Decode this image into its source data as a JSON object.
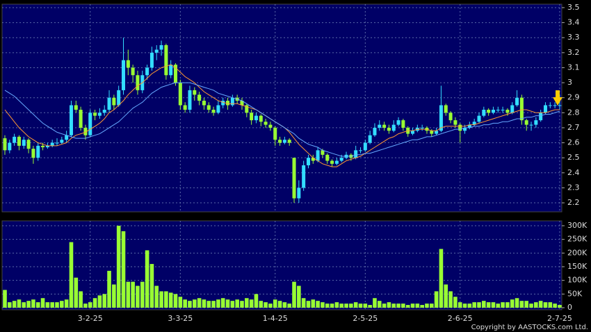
{
  "chart_data": [
    {
      "type": "candlestick",
      "up_color": "#33ddff",
      "down_color": "#99ff33",
      "ylim": [
        2.14,
        3.523
      ],
      "yticks": [
        2.2,
        2.3,
        2.4,
        2.5,
        2.6,
        2.7,
        2.8,
        2.9,
        3,
        3.1,
        3.2,
        3.3,
        3.4,
        3.5
      ],
      "grid": true,
      "categories": [
        null,
        null,
        null,
        null,
        null,
        null,
        null,
        null,
        null,
        null,
        null,
        null,
        null,
        null,
        null,
        null,
        null,
        null,
        "3-2-25",
        null,
        null,
        null,
        null,
        null,
        null,
        null,
        null,
        null,
        null,
        null,
        null,
        null,
        null,
        null,
        null,
        null,
        null,
        "3-3-25",
        null,
        null,
        null,
        null,
        null,
        null,
        null,
        null,
        null,
        null,
        null,
        null,
        null,
        null,
        null,
        null,
        null,
        null,
        null,
        "1-4-25",
        null,
        null,
        null,
        null,
        null,
        null,
        null,
        null,
        null,
        null,
        null,
        null,
        null,
        null,
        null,
        null,
        null,
        null,
        "2-5-25",
        null,
        null,
        null,
        null,
        null,
        null,
        null,
        null,
        null,
        null,
        null,
        null,
        null,
        null,
        null,
        null,
        null,
        null,
        null,
        "2-6-25",
        null,
        null,
        null,
        null,
        null,
        null,
        null,
        null,
        null,
        null,
        null,
        null,
        null,
        null,
        null,
        null,
        null,
        null,
        null,
        null,
        "2-7-25"
      ],
      "ohlc": [
        [
          2.63,
          2.65,
          2.52,
          2.55
        ],
        [
          2.55,
          2.62,
          2.53,
          2.6
        ],
        [
          2.6,
          2.66,
          2.58,
          2.64
        ],
        [
          2.64,
          2.65,
          2.55,
          2.58
        ],
        [
          2.58,
          2.64,
          2.56,
          2.62
        ],
        [
          2.62,
          2.63,
          2.53,
          2.56
        ],
        [
          2.56,
          2.58,
          2.46,
          2.5
        ],
        [
          2.5,
          2.6,
          2.48,
          2.58
        ],
        [
          2.58,
          2.6,
          2.55,
          2.57
        ],
        [
          2.57,
          2.6,
          2.56,
          2.58
        ],
        [
          2.58,
          2.62,
          2.57,
          2.6
        ],
        [
          2.6,
          2.63,
          2.58,
          2.6
        ],
        [
          2.6,
          2.64,
          2.59,
          2.62
        ],
        [
          2.62,
          2.68,
          2.6,
          2.65
        ],
        [
          2.65,
          2.88,
          2.64,
          2.85
        ],
        [
          2.85,
          2.88,
          2.8,
          2.82
        ],
        [
          2.82,
          2.84,
          2.68,
          2.7
        ],
        [
          2.7,
          2.72,
          2.62,
          2.65
        ],
        [
          2.65,
          2.82,
          2.64,
          2.8
        ],
        [
          2.8,
          2.82,
          2.75,
          2.78
        ],
        [
          2.78,
          2.83,
          2.76,
          2.8
        ],
        [
          2.8,
          2.85,
          2.78,
          2.82
        ],
        [
          2.82,
          2.95,
          2.8,
          2.9
        ],
        [
          2.9,
          2.92,
          2.82,
          2.85
        ],
        [
          2.85,
          2.98,
          2.84,
          2.95
        ],
        [
          2.95,
          3.3,
          2.92,
          3.15
        ],
        [
          3.15,
          3.22,
          3.05,
          3.1
        ],
        [
          3.1,
          3.12,
          3.0,
          3.05
        ],
        [
          3.05,
          3.08,
          2.92,
          2.95
        ],
        [
          2.95,
          3.08,
          2.93,
          3.05
        ],
        [
          3.05,
          3.12,
          3.02,
          3.1
        ],
        [
          3.1,
          3.24,
          3.08,
          3.2
        ],
        [
          3.2,
          3.25,
          3.15,
          3.22
        ],
        [
          3.22,
          3.28,
          3.18,
          3.25
        ],
        [
          3.25,
          3.26,
          3.02,
          3.05
        ],
        [
          3.05,
          3.15,
          3.03,
          3.12
        ],
        [
          3.12,
          3.13,
          2.98,
          3.0
        ],
        [
          3.0,
          3.02,
          2.82,
          2.85
        ],
        [
          2.85,
          2.87,
          2.8,
          2.82
        ],
        [
          2.82,
          2.98,
          2.8,
          2.95
        ],
        [
          2.95,
          2.97,
          2.88,
          2.92
        ],
        [
          2.92,
          2.94,
          2.85,
          2.88
        ],
        [
          2.88,
          2.9,
          2.82,
          2.85
        ],
        [
          2.85,
          2.87,
          2.8,
          2.82
        ],
        [
          2.82,
          2.84,
          2.78,
          2.8
        ],
        [
          2.8,
          2.88,
          2.79,
          2.85
        ],
        [
          2.85,
          2.9,
          2.83,
          2.88
        ],
        [
          2.88,
          2.9,
          2.82,
          2.85
        ],
        [
          2.85,
          2.92,
          2.84,
          2.9
        ],
        [
          2.9,
          2.92,
          2.86,
          2.88
        ],
        [
          2.88,
          2.9,
          2.82,
          2.85
        ],
        [
          2.85,
          2.86,
          2.77,
          2.8
        ],
        [
          2.8,
          2.82,
          2.72,
          2.75
        ],
        [
          2.75,
          2.8,
          2.73,
          2.78
        ],
        [
          2.78,
          2.79,
          2.71,
          2.74
        ],
        [
          2.74,
          2.76,
          2.7,
          2.72
        ],
        [
          2.72,
          2.74,
          2.68,
          2.7
        ],
        [
          2.7,
          2.71,
          2.58,
          2.62
        ],
        [
          2.62,
          2.64,
          2.58,
          2.6
        ],
        [
          2.6,
          2.64,
          2.59,
          2.62
        ],
        [
          2.62,
          2.63,
          2.58,
          2.6
        ],
        [
          2.5,
          2.5,
          2.2,
          2.23
        ],
        [
          2.23,
          2.35,
          2.2,
          2.3
        ],
        [
          2.3,
          2.48,
          2.28,
          2.45
        ],
        [
          2.45,
          2.52,
          2.43,
          2.5
        ],
        [
          2.5,
          2.52,
          2.46,
          2.48
        ],
        [
          2.48,
          2.57,
          2.47,
          2.55
        ],
        [
          2.55,
          2.56,
          2.5,
          2.52
        ],
        [
          2.52,
          2.53,
          2.46,
          2.48
        ],
        [
          2.48,
          2.49,
          2.44,
          2.46
        ],
        [
          2.46,
          2.5,
          2.45,
          2.48
        ],
        [
          2.48,
          2.52,
          2.47,
          2.5
        ],
        [
          2.5,
          2.54,
          2.49,
          2.52
        ],
        [
          2.52,
          2.53,
          2.48,
          2.5
        ],
        [
          2.5,
          2.58,
          2.49,
          2.55
        ],
        [
          2.55,
          2.57,
          2.53,
          2.55
        ],
        [
          2.55,
          2.62,
          2.54,
          2.6
        ],
        [
          2.6,
          2.68,
          2.59,
          2.65
        ],
        [
          2.65,
          2.73,
          2.64,
          2.7
        ],
        [
          2.7,
          2.75,
          2.68,
          2.72
        ],
        [
          2.72,
          2.74,
          2.68,
          2.7
        ],
        [
          2.7,
          2.72,
          2.66,
          2.68
        ],
        [
          2.68,
          2.75,
          2.67,
          2.72
        ],
        [
          2.72,
          2.77,
          2.71,
          2.75
        ],
        [
          2.75,
          2.76,
          2.68,
          2.7
        ],
        [
          2.7,
          2.71,
          2.64,
          2.66
        ],
        [
          2.66,
          2.7,
          2.65,
          2.68
        ],
        [
          2.68,
          2.72,
          2.67,
          2.7
        ],
        [
          2.7,
          2.72,
          2.68,
          2.7
        ],
        [
          2.7,
          2.71,
          2.66,
          2.68
        ],
        [
          2.68,
          2.69,
          2.64,
          2.66
        ],
        [
          2.66,
          2.7,
          2.65,
          2.68
        ],
        [
          2.68,
          2.98,
          2.67,
          2.85
        ],
        [
          2.85,
          2.86,
          2.78,
          2.8
        ],
        [
          2.8,
          2.81,
          2.73,
          2.75
        ],
        [
          2.75,
          2.77,
          2.7,
          2.72
        ],
        [
          2.72,
          2.73,
          2.6,
          2.68
        ],
        [
          2.68,
          2.72,
          2.66,
          2.7
        ],
        [
          2.7,
          2.74,
          2.69,
          2.72
        ],
        [
          2.72,
          2.76,
          2.71,
          2.74
        ],
        [
          2.74,
          2.8,
          2.73,
          2.78
        ],
        [
          2.78,
          2.84,
          2.77,
          2.82
        ],
        [
          2.82,
          2.83,
          2.78,
          2.8
        ],
        [
          2.8,
          2.84,
          2.79,
          2.82
        ],
        [
          2.82,
          2.84,
          2.8,
          2.82
        ],
        [
          2.82,
          2.84,
          2.8,
          2.82
        ],
        [
          2.82,
          2.83,
          2.78,
          2.8
        ],
        [
          2.8,
          2.87,
          2.79,
          2.85
        ],
        [
          2.85,
          2.95,
          2.84,
          2.9
        ],
        [
          2.9,
          2.92,
          2.72,
          2.75
        ],
        [
          2.75,
          2.76,
          2.68,
          2.72
        ],
        [
          2.72,
          2.74,
          2.68,
          2.72
        ],
        [
          2.72,
          2.77,
          2.7,
          2.75
        ],
        [
          2.75,
          2.82,
          2.74,
          2.8
        ],
        [
          2.8,
          2.87,
          2.79,
          2.85
        ],
        [
          2.85,
          2.87,
          2.83,
          2.85
        ],
        [
          2.85,
          2.87,
          2.83,
          2.85
        ],
        [
          2.85,
          2.92,
          2.82,
          2.85
        ]
      ],
      "ma": [
        {
          "color": "#ff9933",
          "values": [
            2.82,
            2.78,
            2.74,
            2.7,
            2.67,
            2.64,
            2.62,
            2.6,
            2.59,
            2.58,
            2.58,
            2.58,
            2.59,
            2.6,
            2.63,
            2.65,
            2.66,
            2.67,
            2.69,
            2.71,
            2.73,
            2.76,
            2.8,
            2.82,
            2.85,
            2.88,
            2.92,
            2.95,
            2.98,
            3.0,
            3.03,
            3.06,
            3.08,
            3.1,
            3.11,
            3.12,
            3.1,
            3.07,
            3.04,
            3.02,
            3.0,
            2.97,
            2.94,
            2.92,
            2.9,
            2.88,
            2.87,
            2.86,
            2.86,
            2.86,
            2.85,
            2.84,
            2.83,
            2.82,
            2.8,
            2.78,
            2.76,
            2.74,
            2.72,
            2.7,
            2.67,
            2.63,
            2.59,
            2.56,
            2.53,
            2.5,
            2.48,
            2.46,
            2.45,
            2.44,
            2.44,
            2.46,
            2.48,
            2.49,
            2.5,
            2.51,
            2.53,
            2.55,
            2.57,
            2.59,
            2.61,
            2.63,
            2.64,
            2.66,
            2.67,
            2.68,
            2.68,
            2.69,
            2.69,
            2.69,
            2.68,
            2.68,
            2.7,
            2.71,
            2.71,
            2.71,
            2.71,
            2.71,
            2.72,
            2.72,
            2.73,
            2.74,
            2.75,
            2.76,
            2.77,
            2.78,
            2.79,
            2.8,
            2.81,
            2.82,
            2.82,
            2.81,
            2.8,
            2.8,
            2.8,
            2.81,
            2.82,
            2.82
          ]
        },
        {
          "color": "#66aaff",
          "values": [
            2.95,
            2.93,
            2.91,
            2.88,
            2.85,
            2.82,
            2.79,
            2.76,
            2.73,
            2.71,
            2.69,
            2.67,
            2.66,
            2.65,
            2.64,
            2.63,
            2.63,
            2.63,
            2.64,
            2.65,
            2.66,
            2.68,
            2.7,
            2.72,
            2.74,
            2.77,
            2.8,
            2.83,
            2.85,
            2.87,
            2.9,
            2.93,
            2.95,
            2.97,
            2.98,
            2.99,
            3.0,
            3.0,
            3.0,
            3.0,
            2.99,
            2.98,
            2.97,
            2.96,
            2.95,
            2.93,
            2.92,
            2.91,
            2.9,
            2.89,
            2.88,
            2.86,
            2.84,
            2.82,
            2.8,
            2.78,
            2.76,
            2.74,
            2.72,
            2.7,
            2.68,
            2.66,
            2.63,
            2.61,
            2.59,
            2.58,
            2.57,
            2.55,
            2.54,
            2.53,
            2.52,
            2.51,
            2.51,
            2.51,
            2.52,
            2.52,
            2.53,
            2.53,
            2.54,
            2.55,
            2.56,
            2.57,
            2.58,
            2.59,
            2.6,
            2.61,
            2.62,
            2.62,
            2.63,
            2.64,
            2.64,
            2.65,
            2.66,
            2.67,
            2.68,
            2.69,
            2.69,
            2.7,
            2.7,
            2.71,
            2.71,
            2.72,
            2.72,
            2.73,
            2.73,
            2.74,
            2.74,
            2.75,
            2.76,
            2.76,
            2.77,
            2.77,
            2.78,
            2.78,
            2.79,
            2.79,
            2.8,
            2.81
          ]
        }
      ]
    },
    {
      "type": "bar",
      "color": "#99ff33",
      "ylim": [
        -7600,
        317800
      ],
      "yticks": [
        0,
        {
          "value": 50000,
          "label": "50K"
        },
        {
          "value": 100000,
          "label": "100K"
        },
        {
          "value": 150000,
          "label": "150K"
        },
        {
          "value": 200000,
          "label": "200K"
        },
        {
          "value": 250000,
          "label": "250K"
        },
        {
          "value": 300000,
          "label": "300K"
        }
      ],
      "grid": true,
      "values": [
        65000,
        20000,
        25000,
        30000,
        20000,
        25000,
        30000,
        20000,
        35000,
        20000,
        20000,
        20000,
        25000,
        30000,
        240000,
        110000,
        60000,
        15000,
        20000,
        35000,
        45000,
        50000,
        135000,
        85000,
        300000,
        280000,
        95000,
        95000,
        80000,
        95000,
        210000,
        160000,
        80000,
        60000,
        60000,
        55000,
        50000,
        40000,
        30000,
        25000,
        30000,
        35000,
        30000,
        25000,
        25000,
        30000,
        35000,
        30000,
        25000,
        30000,
        25000,
        35000,
        30000,
        50000,
        25000,
        20000,
        15000,
        30000,
        25000,
        20000,
        15000,
        95000,
        80000,
        35000,
        25000,
        30000,
        25000,
        20000,
        15000,
        15000,
        20000,
        15000,
        15000,
        15000,
        20000,
        15000,
        15000,
        10000,
        35000,
        25000,
        15000,
        20000,
        15000,
        15000,
        15000,
        10000,
        15000,
        15000,
        10000,
        15000,
        15000,
        60000,
        215000,
        85000,
        60000,
        40000,
        20000,
        15000,
        15000,
        20000,
        20000,
        25000,
        20000,
        20000,
        15000,
        20000,
        20000,
        30000,
        35000,
        25000,
        25000,
        15000,
        20000,
        25000,
        20000,
        20000,
        15000,
        10000
      ]
    }
  ],
  "copyright": "Copyright by AASTOCKS.com Ltd."
}
